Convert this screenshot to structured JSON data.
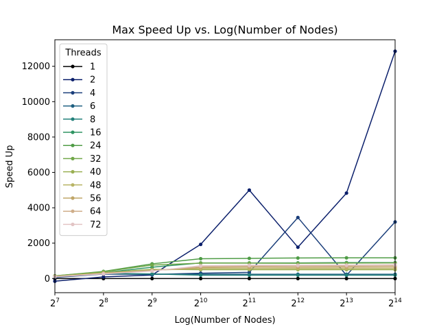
{
  "chart_data": {
    "type": "line",
    "title": "Max Speed Up vs. Log(Number of Nodes)",
    "xlabel": "Log(Number of Nodes)",
    "ylabel": "Speed Up",
    "x_scale": "log2",
    "x": [
      128,
      256,
      512,
      1024,
      2048,
      4096,
      8192,
      16384
    ],
    "x_tick_labels": [
      {
        "base": "2",
        "exp": "7"
      },
      {
        "base": "2",
        "exp": "8"
      },
      {
        "base": "2",
        "exp": "9"
      },
      {
        "base": "2",
        "exp": "10"
      },
      {
        "base": "2",
        "exp": "11"
      },
      {
        "base": "2",
        "exp": "12"
      },
      {
        "base": "2",
        "exp": "13"
      },
      {
        "base": "2",
        "exp": "14"
      }
    ],
    "ylim": [
      -800,
      13500
    ],
    "y_ticks": [
      0,
      2000,
      4000,
      6000,
      8000,
      10000,
      12000
    ],
    "grid": false,
    "legend": {
      "title": "Threads",
      "placement": "top-left"
    },
    "series": [
      {
        "name": "1",
        "color": "#000000",
        "values": [
          0,
          0,
          0,
          0,
          0,
          0,
          0,
          0
        ]
      },
      {
        "name": "2",
        "color": "#0b1f6b",
        "values": [
          -150,
          90,
          200,
          1930,
          5000,
          1770,
          4830,
          12850
        ]
      },
      {
        "name": "4",
        "color": "#1a3e7a",
        "values": [
          60,
          250,
          230,
          300,
          350,
          3450,
          180,
          3200
        ]
      },
      {
        "name": "6",
        "color": "#1e5f80",
        "values": [
          100,
          270,
          240,
          240,
          240,
          240,
          240,
          240
        ]
      },
      {
        "name": "8",
        "color": "#22807a",
        "values": [
          110,
          290,
          260,
          190,
          190,
          190,
          190,
          190
        ]
      },
      {
        "name": "16",
        "color": "#2e9462",
        "values": [
          140,
          330,
          640,
          880,
          880,
          880,
          900,
          900
        ]
      },
      {
        "name": "24",
        "color": "#4f9c46",
        "values": [
          150,
          400,
          830,
          1120,
          1140,
          1160,
          1170,
          1170
        ]
      },
      {
        "name": "32",
        "color": "#72a84a",
        "values": [
          150,
          380,
          760,
          870,
          870,
          860,
          870,
          880
        ]
      },
      {
        "name": "40",
        "color": "#9aaf52",
        "values": [
          130,
          330,
          520,
          500,
          500,
          500,
          500,
          500
        ]
      },
      {
        "name": "48",
        "color": "#b8b465",
        "values": [
          120,
          310,
          470,
          560,
          560,
          560,
          560,
          560
        ]
      },
      {
        "name": "56",
        "color": "#c0a668",
        "values": [
          120,
          300,
          460,
          620,
          640,
          630,
          640,
          650
        ]
      },
      {
        "name": "64",
        "color": "#cfae8a",
        "values": [
          110,
          280,
          440,
          680,
          700,
          700,
          700,
          720
        ]
      },
      {
        "name": "72",
        "color": "#e2c4c4",
        "values": [
          100,
          260,
          420,
          720,
          750,
          750,
          760,
          780
        ]
      }
    ]
  }
}
